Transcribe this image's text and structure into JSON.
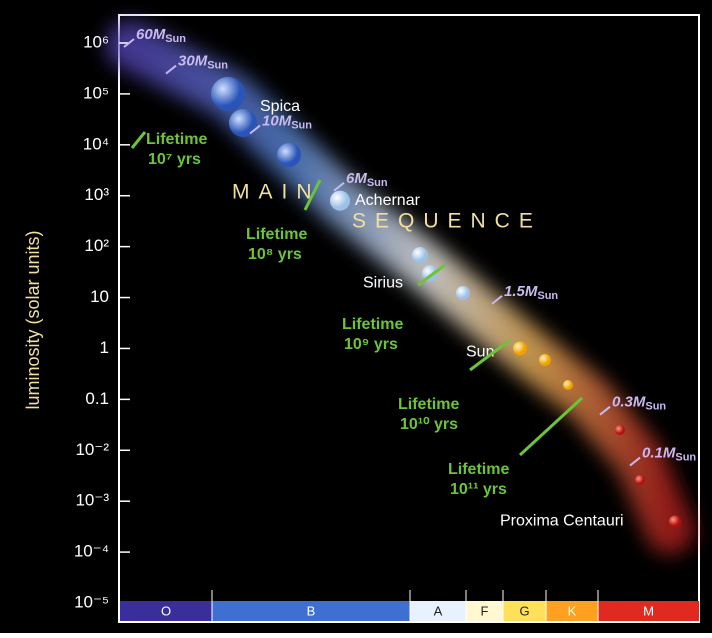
{
  "chart_data": {
    "type": "scatter",
    "y_label": "luminosity (solar units)",
    "ylog": true,
    "ylim": [
      1e-05,
      1000000
    ],
    "yticks": [
      {
        "value": 1000000,
        "label": "10⁶"
      },
      {
        "value": 100000,
        "label": "10⁵"
      },
      {
        "value": 10000,
        "label": "10⁴"
      },
      {
        "value": 1000,
        "label": "10³"
      },
      {
        "value": 100,
        "label": "10²"
      },
      10,
      1,
      0.1,
      {
        "value": 0.01,
        "label": "10⁻²"
      },
      {
        "value": 0.001,
        "label": "10⁻³"
      },
      {
        "value": 0.0001,
        "label": "10⁻⁴"
      },
      {
        "value": 1e-05,
        "label": "10⁻⁵"
      }
    ],
    "categories": [
      "O",
      "B",
      "A",
      "F",
      "G",
      "K",
      "M"
    ],
    "category_colors": [
      "#3a2f9a",
      "#3f6fd0",
      "#e8f2ff",
      "#fff8d0",
      "#ffe05a",
      "#ffa020",
      "#e02a20"
    ],
    "sequence_label": [
      "MAIN",
      "SEQUENCE"
    ],
    "stars": {
      "names": [
        "Spica",
        "Achernar",
        "Sirius",
        "Sun",
        "Proxima Centauri"
      ],
      "values": [
        100000,
        800,
        30,
        1,
        0.0004
      ]
    },
    "mass_unit": "M",
    "mass_unit_sub": "Sun",
    "masses": {
      "labels": [
        "60",
        "30",
        "10",
        "6",
        "1.5",
        "0.3",
        "0.1"
      ],
      "values": [
        1000000,
        300000,
        20000,
        1500,
        9,
        0.06,
        0.006
      ]
    },
    "lifetimes": [
      {
        "text": "Lifetime",
        "years": "10⁷ yrs"
      },
      {
        "text": "Lifetime",
        "years": "10⁸ yrs"
      },
      {
        "text": "Lifetime",
        "years": "10⁹ yrs"
      },
      {
        "text": "Lifetime",
        "years": "10¹⁰ yrs"
      },
      {
        "text": "Lifetime",
        "years": "10¹¹ yrs"
      }
    ]
  }
}
